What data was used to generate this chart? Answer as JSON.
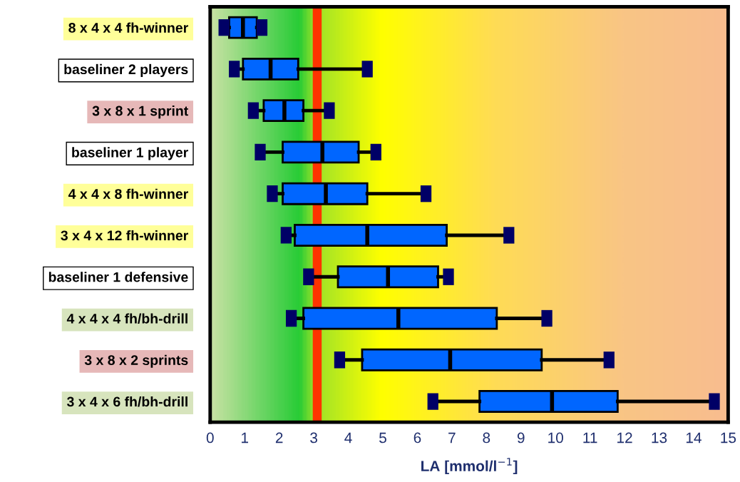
{
  "chart_data": {
    "type": "box",
    "orientation": "horizontal",
    "xlabel": "LA [mmol/l$^{−1}$]",
    "categories": [
      "8 x 4 x 4 fh-winner",
      "baseliner 2 players",
      "3 x 8 x 1 sprint",
      "baseliner 1 player",
      "4 x 4 x 8 fh-winner",
      "3 x 4 x 12 fh-winner",
      "baseliner 1 defensive",
      "4 x 4 x 4 fh/bh-drill",
      "3 x 8 x 2 sprints",
      "3 x 4 x 6 fh/bh-drill"
    ],
    "boxes": [
      {
        "low": 0.4,
        "q1": 0.55,
        "median": 0.95,
        "q3": 1.35,
        "high": 1.5
      },
      {
        "low": 0.7,
        "q1": 0.95,
        "median": 1.75,
        "q3": 2.55,
        "high": 4.55
      },
      {
        "low": 1.25,
        "q1": 1.55,
        "median": 2.15,
        "q3": 2.7,
        "high": 3.45
      },
      {
        "low": 1.45,
        "q1": 2.1,
        "median": 3.25,
        "q3": 4.3,
        "high": 4.8
      },
      {
        "low": 1.8,
        "q1": 2.1,
        "median": 3.35,
        "q3": 4.55,
        "high": 6.25
      },
      {
        "low": 2.2,
        "q1": 2.45,
        "median": 4.55,
        "q3": 6.85,
        "high": 8.65
      },
      {
        "low": 2.85,
        "q1": 3.7,
        "median": 5.15,
        "q3": 6.6,
        "high": 6.9
      },
      {
        "low": 2.35,
        "q1": 2.7,
        "median": 5.45,
        "q3": 8.3,
        "high": 9.75
      },
      {
        "low": 3.75,
        "q1": 4.4,
        "median": 6.95,
        "q3": 9.6,
        "high": 11.55
      },
      {
        "low": 6.45,
        "q1": 7.8,
        "median": 9.9,
        "q3": 11.8,
        "high": 14.6
      }
    ],
    "color": "#0066ff",
    "xlim": [
      0,
      15
    ],
    "xticks": [
      0,
      1,
      2,
      3,
      4,
      5,
      6,
      7,
      8,
      9,
      10,
      11,
      12,
      13,
      14,
      15
    ],
    "ref_lines": [
      {
        "axis": "x",
        "value": 3.1,
        "color": "#ff3300"
      }
    ],
    "grid": false
  }
}
